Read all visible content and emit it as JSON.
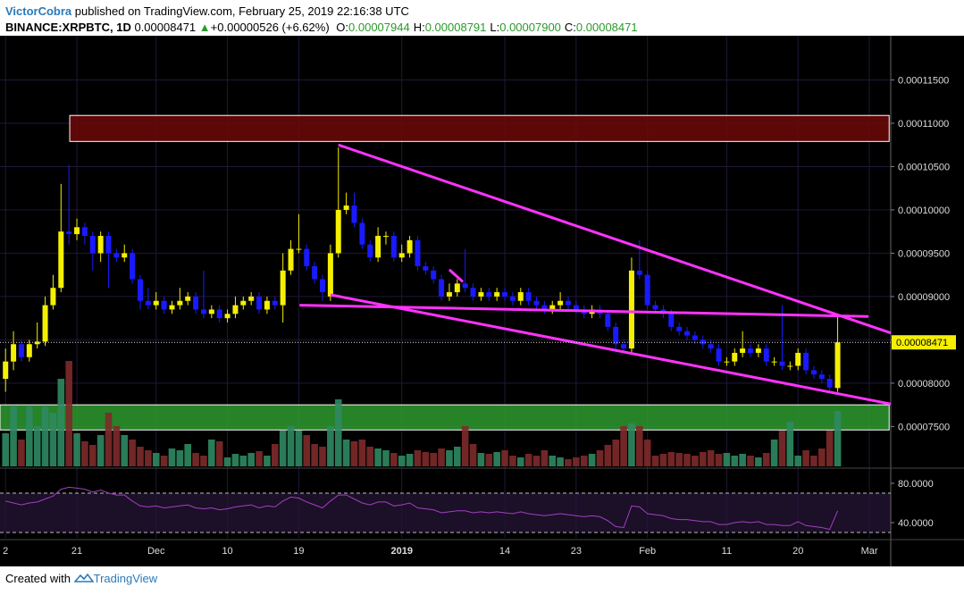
{
  "header": {
    "author": "VictorCobra",
    "published": "published on TradingView.com, February 25, 2019 22:16:38 UTC",
    "symbol": "BINANCE:XRPBTC, 1D",
    "last": "0.00008471",
    "change": "+0.00000526 (+6.62%)",
    "ohlc": [
      {
        "label": "O:",
        "value": "0.00007944"
      },
      {
        "label": "H:",
        "value": "0.00008791"
      },
      {
        "label": "L:",
        "value": "0.00007900"
      },
      {
        "label": "C:",
        "value": "0.00008471"
      }
    ]
  },
  "chart_data": {
    "type": "candlestick",
    "x": [
      0,
      1,
      2,
      3,
      4,
      5,
      6,
      7,
      8,
      9,
      10,
      11,
      12,
      13,
      14,
      15,
      16,
      17,
      18,
      19,
      20,
      21,
      22,
      23,
      24,
      25,
      26,
      27,
      28,
      29,
      30,
      31,
      32,
      33,
      34,
      35,
      36,
      37,
      38,
      39,
      40,
      41,
      42,
      43,
      44,
      45,
      46,
      47,
      48,
      49,
      50,
      51,
      52,
      53,
      54,
      55,
      56,
      57,
      58,
      59,
      60,
      61,
      62,
      63,
      64,
      65,
      66,
      67,
      68,
      69,
      70,
      71,
      72,
      73,
      74,
      75,
      76,
      77,
      78,
      79,
      80,
      81,
      82,
      83,
      84,
      85,
      86,
      87,
      88,
      89,
      90,
      91,
      92,
      93,
      94,
      95,
      96,
      97,
      98,
      99,
      100,
      101,
      102,
      103,
      104,
      105
    ],
    "open": [
      8.05e-05,
      8.25e-05,
      8.45e-05,
      8.3e-05,
      8.45e-05,
      8.48e-05,
      8.9e-05,
      9.1e-05,
      9.75e-05,
      9.72e-05,
      9.8e-05,
      9.7e-05,
      9.5e-05,
      9.7e-05,
      9.5e-05,
      9.45e-05,
      9.5e-05,
      9.2e-05,
      8.95e-05,
      8.9e-05,
      8.95e-05,
      8.85e-05,
      8.9e-05,
      8.95e-05,
      9e-05,
      8.85e-05,
      8.8e-05,
      8.85e-05,
      8.75e-05,
      8.8e-05,
      8.9e-05,
      8.95e-05,
      9e-05,
      8.85e-05,
      8.95e-05,
      8.9e-05,
      9.3e-05,
      9.55e-05,
      9.55e-05,
      9.35e-05,
      9.2e-05,
      9e-05,
      9.5e-05,
      0.0001,
      0.0001005,
      9.85e-05,
      9.6e-05,
      9.45e-05,
      9.7e-05,
      9.7e-05,
      9.45e-05,
      9.5e-05,
      9.65e-05,
      9.35e-05,
      9.3e-05,
      9.2e-05,
      9e-05,
      9.05e-05,
      9.15e-05,
      9.1e-05,
      9e-05,
      9.05e-05,
      9e-05,
      9.05e-05,
      9e-05,
      8.95e-05,
      9.05e-05,
      8.95e-05,
      8.9e-05,
      8.85e-05,
      8.9e-05,
      8.95e-05,
      8.9e-05,
      8.85e-05,
      8.8e-05,
      8.85e-05,
      8.8e-05,
      8.65e-05,
      8.45e-05,
      8.4e-05,
      9.3e-05,
      9.25e-05,
      8.9e-05,
      8.85e-05,
      8.8e-05,
      8.65e-05,
      8.6e-05,
      8.55e-05,
      8.5e-05,
      8.45e-05,
      8.4e-05,
      8.25e-05,
      8.25e-05,
      8.35e-05,
      8.4e-05,
      8.35e-05,
      8.4e-05,
      8.25e-05,
      8.25e-05,
      8.2e-05,
      8.2e-05,
      8.35e-05,
      8.15e-05,
      8.1e-05,
      8.05e-05,
      7.944e-05
    ],
    "high": [
      8.4e-05,
      8.6e-05,
      8.5e-05,
      8.5e-05,
      8.7e-05,
      9e-05,
      9.25e-05,
      0.000103,
      0.0001052,
      9.9e-05,
      9.85e-05,
      9.75e-05,
      9.75e-05,
      9.75e-05,
      9.55e-05,
      9.6e-05,
      9.55e-05,
      9.25e-05,
      9.1e-05,
      9.05e-05,
      9e-05,
      8.95e-05,
      9.1e-05,
      9.05e-05,
      9.05e-05,
      9.3e-05,
      8.9e-05,
      8.9e-05,
      8.85e-05,
      9e-05,
      9e-05,
      9.05e-05,
      9.05e-05,
      9e-05,
      9e-05,
      9.5e-05,
      9.65e-05,
      9.95e-05,
      9.6e-05,
      9.4e-05,
      9.25e-05,
      9.6e-05,
      0.0001072,
      0.000102,
      0.000102,
      9.9e-05,
      9.65e-05,
      9.8e-05,
      9.75e-05,
      9.75e-05,
      9.6e-05,
      9.7e-05,
      9.7e-05,
      9.4e-05,
      9.35e-05,
      9.25e-05,
      9.15e-05,
      9.2e-05,
      9.55e-05,
      9.15e-05,
      9.1e-05,
      9.1e-05,
      9.1e-05,
      9.1e-05,
      9.05e-05,
      9.1e-05,
      9.1e-05,
      9e-05,
      8.95e-05,
      8.95e-05,
      9.05e-05,
      9e-05,
      8.95e-05,
      8.9e-05,
      8.9e-05,
      8.9e-05,
      8.85e-05,
      8.7e-05,
      8.5e-05,
      9.45e-05,
      9.65e-05,
      9.3e-05,
      8.95e-05,
      8.9e-05,
      8.85e-05,
      8.7e-05,
      8.65e-05,
      8.6e-05,
      8.55e-05,
      8.5e-05,
      8.45e-05,
      8.3e-05,
      8.4e-05,
      8.6e-05,
      8.45e-05,
      8.45e-05,
      8.45e-05,
      8.3e-05,
      8.9e-05,
      8.25e-05,
      8.4e-05,
      8.4e-05,
      8.2e-05,
      8.15e-05,
      8.1e-05,
      8.791e-05
    ],
    "low": [
      7.9e-05,
      8.15e-05,
      8.25e-05,
      8.25e-05,
      8.4e-05,
      8.43e-05,
      8.85e-05,
      9.05e-05,
      9.6e-05,
      9.65e-05,
      9.6e-05,
      9.3e-05,
      9.4e-05,
      9.1e-05,
      9.4e-05,
      9.4e-05,
      9.15e-05,
      8.85e-05,
      8.85e-05,
      8.85e-05,
      8.8e-05,
      8.8e-05,
      8.85e-05,
      8.9e-05,
      8.8e-05,
      8.75e-05,
      8.75e-05,
      8.7e-05,
      8.7e-05,
      8.75e-05,
      8.85e-05,
      8.9e-05,
      8.8e-05,
      8.8e-05,
      8.85e-05,
      8.7e-05,
      9.25e-05,
      9.5e-05,
      9.3e-05,
      9.15e-05,
      8.95e-05,
      8.95e-05,
      9.45e-05,
      9.95e-05,
      9.8e-05,
      9.55e-05,
      9.4e-05,
      9.4e-05,
      9.6e-05,
      9.4e-05,
      9.4e-05,
      9.45e-05,
      9.3e-05,
      9.25e-05,
      9.15e-05,
      8.95e-05,
      8.95e-05,
      9e-05,
      9.05e-05,
      8.95e-05,
      8.95e-05,
      8.95e-05,
      8.95e-05,
      8.95e-05,
      8.9e-05,
      8.9e-05,
      8.9e-05,
      8.85e-05,
      8.8e-05,
      8.8e-05,
      8.85e-05,
      8.85e-05,
      8.8e-05,
      8.75e-05,
      8.75e-05,
      8.75e-05,
      8.6e-05,
      8.35e-05,
      8.35e-05,
      8.35e-05,
      9.2e-05,
      8.85e-05,
      8.8e-05,
      8.75e-05,
      8.6e-05,
      8.55e-05,
      8.5e-05,
      8.45e-05,
      8.4e-05,
      8.35e-05,
      8.2e-05,
      8.2e-05,
      8.2e-05,
      8.3e-05,
      8.3e-05,
      8.3e-05,
      8.2e-05,
      8.2e-05,
      8.15e-05,
      8.15e-05,
      8.15e-05,
      8.1e-05,
      8.05e-05,
      8e-05,
      7.9e-05,
      7.9e-05
    ],
    "close": [
      8.25e-05,
      8.45e-05,
      8.3e-05,
      8.45e-05,
      8.48e-05,
      8.9e-05,
      9.1e-05,
      9.75e-05,
      9.72e-05,
      9.8e-05,
      9.7e-05,
      9.5e-05,
      9.7e-05,
      9.5e-05,
      9.45e-05,
      9.5e-05,
      9.2e-05,
      8.95e-05,
      8.9e-05,
      8.95e-05,
      8.85e-05,
      8.9e-05,
      8.95e-05,
      9e-05,
      8.85e-05,
      8.8e-05,
      8.85e-05,
      8.75e-05,
      8.8e-05,
      8.9e-05,
      8.95e-05,
      9e-05,
      8.85e-05,
      8.95e-05,
      8.9e-05,
      9.3e-05,
      9.55e-05,
      9.55e-05,
      9.35e-05,
      9.2e-05,
      9.05e-05,
      9.5e-05,
      0.0001,
      0.0001005,
      9.85e-05,
      9.6e-05,
      9.45e-05,
      9.7e-05,
      9.7e-05,
      9.45e-05,
      9.5e-05,
      9.65e-05,
      9.35e-05,
      9.3e-05,
      9.2e-05,
      9e-05,
      9.05e-05,
      9.15e-05,
      9.1e-05,
      9e-05,
      9.05e-05,
      9e-05,
      9.05e-05,
      9e-05,
      8.95e-05,
      9.05e-05,
      8.95e-05,
      8.9e-05,
      8.85e-05,
      8.9e-05,
      8.95e-05,
      8.9e-05,
      8.85e-05,
      8.8e-05,
      8.85e-05,
      8.8e-05,
      8.65e-05,
      8.45e-05,
      8.4e-05,
      9.3e-05,
      9.25e-05,
      8.9e-05,
      8.85e-05,
      8.8e-05,
      8.65e-05,
      8.6e-05,
      8.55e-05,
      8.5e-05,
      8.45e-05,
      8.4e-05,
      8.25e-05,
      8.25e-05,
      8.35e-05,
      8.4e-05,
      8.35e-05,
      8.4e-05,
      8.25e-05,
      8.25e-05,
      8.2e-05,
      8.2e-05,
      8.35e-05,
      8.15e-05,
      8.1e-05,
      8.05e-05,
      7.95e-05,
      8.471e-05
    ],
    "colors": {
      "up": "#f5f000",
      "down": "#1a1aff"
    },
    "xlim": [
      -0.7,
      111.7
    ],
    "xticks": [
      {
        "value": 0,
        "label": "2"
      },
      {
        "value": 9,
        "label": "21"
      },
      {
        "value": 19,
        "label": "Dec"
      },
      {
        "value": 28,
        "label": "10"
      },
      {
        "value": 37,
        "label": "19"
      },
      {
        "value": 50,
        "label": "2019"
      },
      {
        "value": 63,
        "label": "14"
      },
      {
        "value": 72,
        "label": "23"
      },
      {
        "value": 81,
        "label": "Feb"
      },
      {
        "value": 91,
        "label": "11"
      },
      {
        "value": 100,
        "label": "20"
      },
      {
        "value": 109,
        "label": "Mar"
      }
    ],
    "ylim": [
      7.04e-05,
      0.0001201
    ],
    "yticks": [
      {
        "value": 7.5e-05,
        "label": "0.00007500"
      },
      {
        "value": 8e-05,
        "label": "0.00008000"
      },
      {
        "value": 8.5e-05,
        "label": "0.00008500"
      },
      {
        "value": 9e-05,
        "label": "0.00009000"
      },
      {
        "value": 9.5e-05,
        "label": "0.00009500"
      },
      {
        "value": 0.0001,
        "label": "0.00010000"
      },
      {
        "value": 0.000105,
        "label": "0.00010500"
      },
      {
        "value": 0.00011,
        "label": "0.00011000"
      },
      {
        "value": 0.000115,
        "label": "0.00011500"
      }
    ],
    "grid": true,
    "last_price": {
      "value": 8.471e-05,
      "label": "0.00008471"
    },
    "volume": {
      "values": [
        37,
        67,
        30,
        67,
        45,
        67,
        60,
        98,
        118,
        37,
        28,
        24,
        35,
        60,
        45,
        35,
        30,
        22,
        18,
        15,
        12,
        20,
        18,
        25,
        15,
        12,
        30,
        28,
        10,
        14,
        12,
        15,
        17,
        12,
        25,
        40,
        45,
        40,
        35,
        25,
        22,
        45,
        75,
        30,
        28,
        30,
        22,
        20,
        18,
        15,
        12,
        14,
        18,
        16,
        15,
        20,
        18,
        22,
        45,
        25,
        15,
        14,
        16,
        18,
        12,
        10,
        14,
        12,
        18,
        12,
        10,
        8,
        10,
        12,
        14,
        18,
        24,
        30,
        45,
        48,
        45,
        30,
        12,
        14,
        16,
        15,
        14,
        12,
        16,
        18,
        14,
        15,
        12,
        14,
        12,
        10,
        15,
        30,
        40,
        50,
        12,
        18,
        12,
        20,
        40,
        62
      ],
      "up_color": "#2f8a62",
      "down_color": "#7e2a2a"
    },
    "rsi": {
      "values": [
        62,
        60,
        58,
        60,
        61,
        64,
        67,
        74,
        76,
        75,
        74,
        71,
        73,
        70,
        68,
        68,
        62,
        57,
        56,
        57,
        55,
        56,
        57,
        58,
        55,
        54,
        55,
        53,
        54,
        56,
        57,
        58,
        55,
        57,
        56,
        62,
        66,
        65,
        61,
        58,
        55,
        62,
        68,
        68,
        64,
        60,
        58,
        61,
        61,
        57,
        58,
        60,
        55,
        54,
        53,
        50,
        51,
        52,
        52,
        50,
        51,
        50,
        51,
        50,
        49,
        51,
        49,
        48,
        47,
        48,
        49,
        48,
        47,
        46,
        47,
        46,
        42,
        36,
        35,
        57,
        56,
        49,
        48,
        47,
        44,
        43,
        43,
        42,
        41,
        41,
        38,
        38,
        40,
        41,
        40,
        41,
        38,
        38,
        37,
        37,
        41,
        37,
        36,
        35,
        33,
        52
      ],
      "color": "#a040c0",
      "ylim": [
        24.5,
        94.5
      ],
      "yticks": [
        {
          "value": 80,
          "label": "80.0000"
        },
        {
          "value": 40,
          "label": "40.0000"
        }
      ],
      "levels": [
        70,
        30
      ]
    },
    "drawings": {
      "zones": [
        {
          "x1": 8.1,
          "x2": 111.5,
          "y1": 0.0001109,
          "y2": 0.0001079,
          "color": "#6e0808"
        },
        {
          "x1": -0.7,
          "x2": 111.5,
          "y1": 7.75e-05,
          "y2": 7.46e-05,
          "color": "#2e9a2e"
        }
      ],
      "lines": [
        {
          "x1": 42,
          "y1": 0.0001075,
          "x2": 111.7,
          "y2": 8.58e-05
        },
        {
          "x1": 41,
          "y1": 9.02e-05,
          "x2": 111.7,
          "y2": 7.76e-05
        },
        {
          "x1": 37.1,
          "y1": 8.9e-05,
          "x2": 108.9,
          "y2": 8.77e-05
        },
        {
          "x1": 56,
          "y1": 9.31e-05,
          "x2": 57.7,
          "y2": 9.17e-05
        }
      ],
      "color": "#ff33ff"
    }
  },
  "footer": {
    "prefix": "Created with",
    "brand": "TradingView"
  }
}
